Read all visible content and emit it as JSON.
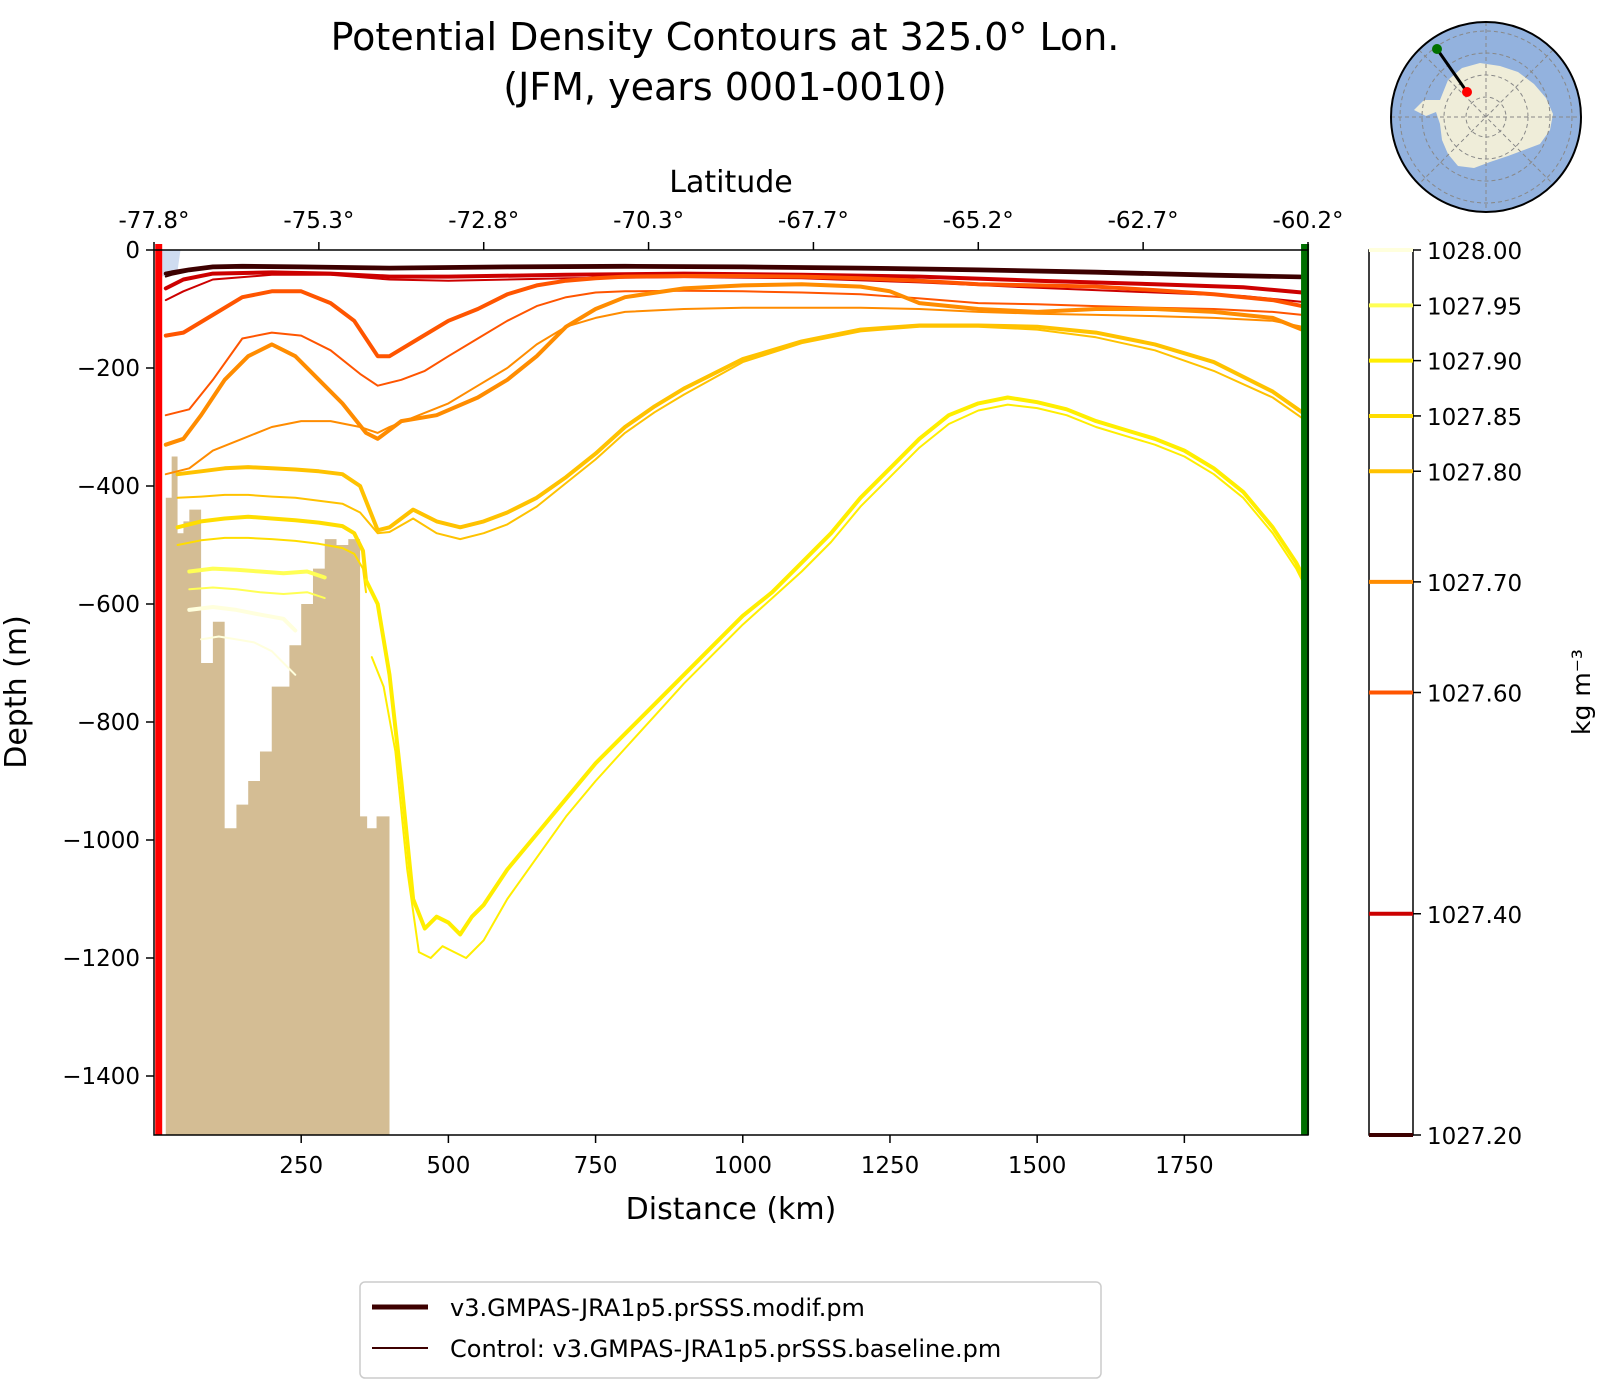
{
  "chart_data": {
    "type": "line",
    "title_line1": "Potential Density Contours at 325.0° Lon.",
    "title_line2": "(JFM, years 0001-0010)",
    "xlabel": "Distance (km)",
    "ylabel": "Depth (m)",
    "top_xlabel": "Latitude",
    "xlim": [
      0,
      1960
    ],
    "ylim": [
      -1500,
      0
    ],
    "x_ticks": [
      {
        "value": 250,
        "label": "250"
      },
      {
        "value": 500,
        "label": "500"
      },
      {
        "value": 750,
        "label": "750"
      },
      {
        "value": 1000,
        "label": "1000"
      },
      {
        "value": 1250,
        "label": "1250"
      },
      {
        "value": 1500,
        "label": "1500"
      },
      {
        "value": 1750,
        "label": "1750"
      }
    ],
    "y_ticks": [
      {
        "value": 0,
        "label": "0"
      },
      {
        "value": -200,
        "label": "−200"
      },
      {
        "value": -400,
        "label": "−400"
      },
      {
        "value": -600,
        "label": "−600"
      },
      {
        "value": -800,
        "label": "−800"
      },
      {
        "value": -1000,
        "label": "−1000"
      },
      {
        "value": -1200,
        "label": "−1200"
      },
      {
        "value": -1400,
        "label": "−1400"
      }
    ],
    "lat_ticks": [
      {
        "value": 0,
        "label": "-77.8°"
      },
      {
        "value": 280,
        "label": "-75.3°"
      },
      {
        "value": 560,
        "label": "-72.8°"
      },
      {
        "value": 840,
        "label": "-70.3°"
      },
      {
        "value": 1120,
        "label": "-67.7°"
      },
      {
        "value": 1400,
        "label": "-65.2°"
      },
      {
        "value": 1680,
        "label": "-62.7°"
      },
      {
        "value": 1960,
        "label": "-60.2°"
      }
    ],
    "colorbar": {
      "label": "kg m⁻³",
      "range": [
        1027.2,
        1028.0
      ],
      "levels": [
        {
          "value": 1028.0,
          "label": "1028.00",
          "color": "#ffffdd"
        },
        {
          "value": 1027.95,
          "label": "1027.95",
          "color": "#ffff55"
        },
        {
          "value": 1027.9,
          "label": "1027.90",
          "color": "#ffee00"
        },
        {
          "value": 1027.85,
          "label": "1027.85",
          "color": "#ffdd00"
        },
        {
          "value": 1027.8,
          "label": "1027.80",
          "color": "#ffc200"
        },
        {
          "value": 1027.7,
          "label": "1027.70",
          "color": "#ff8c00"
        },
        {
          "value": 1027.6,
          "label": "1027.60",
          "color": "#ff5500"
        },
        {
          "value": 1027.4,
          "label": "1027.40",
          "color": "#cc0000"
        },
        {
          "value": 1027.2,
          "label": "1027.20",
          "color": "#3d0000"
        }
      ]
    },
    "series": [
      {
        "name": "1027.20 modif",
        "level": 1027.2,
        "run": "modif",
        "x": [
          20,
          30,
          60,
          100,
          150,
          250,
          400,
          600,
          800,
          1000,
          1200,
          1400,
          1600,
          1800,
          1950
        ],
        "y": [
          -40,
          -38,
          -33,
          -28,
          -27,
          -28,
          -30,
          -28,
          -27,
          -28,
          -30,
          -33,
          -37,
          -42,
          -45
        ]
      },
      {
        "name": "1027.20 control",
        "level": 1027.2,
        "run": "control",
        "x": [
          20,
          30,
          60,
          100,
          150,
          250,
          400,
          600,
          800,
          1000,
          1200,
          1400,
          1600,
          1800,
          1950
        ],
        "y": [
          -45,
          -42,
          -36,
          -31,
          -30,
          -31,
          -33,
          -31,
          -30,
          -31,
          -33,
          -36,
          -40,
          -45,
          -48
        ]
      },
      {
        "name": "1027.40 modif",
        "level": 1027.4,
        "run": "modif",
        "x": [
          20,
          50,
          100,
          200,
          300,
          400,
          500,
          700,
          900,
          1100,
          1300,
          1500,
          1700,
          1850,
          1950
        ],
        "y": [
          -65,
          -50,
          -40,
          -38,
          -40,
          -45,
          -45,
          -42,
          -40,
          -42,
          -45,
          -52,
          -58,
          -63,
          -72
        ]
      },
      {
        "name": "1027.40 control",
        "level": 1027.4,
        "run": "control",
        "x": [
          20,
          50,
          100,
          200,
          300,
          400,
          500,
          700,
          900,
          1100,
          1300,
          1500,
          1700,
          1850,
          1950
        ],
        "y": [
          -85,
          -70,
          -50,
          -42,
          -42,
          -50,
          -52,
          -48,
          -46,
          -48,
          -55,
          -64,
          -72,
          -78,
          -88
        ]
      },
      {
        "name": "1027.60 modif",
        "level": 1027.6,
        "run": "modif",
        "x": [
          20,
          50,
          100,
          150,
          200,
          250,
          300,
          340,
          380,
          400,
          450,
          500,
          550,
          600,
          650,
          700,
          750,
          800,
          900,
          1000,
          1100,
          1200,
          1300,
          1400,
          1500,
          1600,
          1700,
          1800,
          1900,
          1950
        ],
        "y": [
          -145,
          -140,
          -110,
          -80,
          -70,
          -70,
          -90,
          -120,
          -180,
          -180,
          -150,
          -120,
          -100,
          -75,
          -60,
          -52,
          -48,
          -45,
          -44,
          -44,
          -45,
          -48,
          -52,
          -58,
          -60,
          -62,
          -68,
          -75,
          -85,
          -95
        ]
      },
      {
        "name": "1027.60 control",
        "level": 1027.6,
        "run": "control",
        "x": [
          20,
          60,
          100,
          150,
          200,
          250,
          300,
          350,
          380,
          420,
          460,
          500,
          550,
          600,
          650,
          700,
          750,
          800,
          900,
          1000,
          1100,
          1200,
          1300,
          1400,
          1500,
          1600,
          1700,
          1800,
          1900,
          1950
        ],
        "y": [
          -280,
          -270,
          -220,
          -150,
          -140,
          -145,
          -170,
          -210,
          -230,
          -220,
          -205,
          -180,
          -150,
          -120,
          -95,
          -80,
          -72,
          -70,
          -69,
          -70,
          -72,
          -75,
          -82,
          -90,
          -92,
          -95,
          -98,
          -100,
          -105,
          -110
        ]
      },
      {
        "name": "1027.70 modif",
        "level": 1027.7,
        "run": "modif",
        "x": [
          20,
          50,
          80,
          120,
          160,
          200,
          240,
          280,
          320,
          360,
          380,
          420,
          480,
          550,
          600,
          650,
          700,
          750,
          800,
          900,
          1000,
          1100,
          1200,
          1250,
          1300,
          1400,
          1500,
          1600,
          1700,
          1800,
          1900,
          1950
        ],
        "y": [
          -330,
          -320,
          -280,
          -220,
          -180,
          -160,
          -180,
          -220,
          -260,
          -310,
          -320,
          -290,
          -280,
          -250,
          -220,
          -180,
          -130,
          -100,
          -80,
          -65,
          -60,
          -58,
          -62,
          -70,
          -90,
          -100,
          -105,
          -100,
          -100,
          -105,
          -115,
          -135
        ]
      },
      {
        "name": "1027.70 control",
        "level": 1027.7,
        "run": "control",
        "x": [
          20,
          60,
          100,
          150,
          200,
          250,
          300,
          350,
          380,
          400,
          450,
          500,
          550,
          600,
          650,
          700,
          750,
          800,
          900,
          1000,
          1100,
          1200,
          1300,
          1400,
          1500,
          1600,
          1700,
          1800,
          1900,
          1950
        ],
        "y": [
          -380,
          -370,
          -340,
          -320,
          -300,
          -290,
          -290,
          -300,
          -310,
          -300,
          -280,
          -260,
          -230,
          -200,
          -160,
          -130,
          -115,
          -105,
          -100,
          -98,
          -98,
          -98,
          -100,
          -105,
          -108,
          -110,
          -112,
          -115,
          -120,
          -130
        ]
      },
      {
        "name": "1027.80 modif",
        "level": 1027.8,
        "run": "modif",
        "x": [
          40,
          80,
          120,
          160,
          200,
          240,
          280,
          320,
          350,
          380,
          400,
          440,
          480,
          520,
          560,
          600,
          650,
          700,
          750,
          800,
          850,
          900,
          1000,
          1100,
          1200,
          1300,
          1400,
          1500,
          1600,
          1700,
          1800,
          1900,
          1950
        ],
        "y": [
          -380,
          -375,
          -370,
          -368,
          -370,
          -372,
          -375,
          -380,
          -400,
          -475,
          -470,
          -440,
          -460,
          -470,
          -460,
          -445,
          -420,
          -385,
          -345,
          -300,
          -265,
          -235,
          -185,
          -155,
          -135,
          -128,
          -128,
          -130,
          -140,
          -160,
          -190,
          -240,
          -275
        ]
      },
      {
        "name": "1027.80 control",
        "level": 1027.8,
        "run": "control",
        "x": [
          40,
          80,
          120,
          160,
          200,
          240,
          280,
          320,
          350,
          380,
          400,
          440,
          480,
          520,
          560,
          600,
          650,
          700,
          750,
          800,
          850,
          900,
          1000,
          1100,
          1200,
          1300,
          1400,
          1500,
          1600,
          1700,
          1800,
          1900,
          1950
        ],
        "y": [
          -420,
          -418,
          -415,
          -415,
          -418,
          -420,
          -425,
          -430,
          -445,
          -480,
          -478,
          -455,
          -480,
          -490,
          -480,
          -465,
          -435,
          -395,
          -355,
          -310,
          -275,
          -245,
          -190,
          -158,
          -138,
          -130,
          -130,
          -135,
          -148,
          -170,
          -205,
          -250,
          -285
        ]
      },
      {
        "name": "1027.85 modif",
        "level": 1027.85,
        "run": "modif",
        "x": [
          40,
          80,
          120,
          160,
          200,
          240,
          280,
          320,
          340,
          355,
          360
        ],
        "y": [
          -470,
          -460,
          -455,
          -452,
          -455,
          -458,
          -462,
          -468,
          -480,
          -510,
          -560
        ]
      },
      {
        "name": "1027.85 control",
        "level": 1027.85,
        "run": "control",
        "x": [
          40,
          80,
          120,
          160,
          200,
          240,
          280,
          320,
          340,
          355,
          360
        ],
        "y": [
          -500,
          -492,
          -488,
          -488,
          -490,
          -493,
          -498,
          -505,
          -515,
          -540,
          -580
        ]
      },
      {
        "name": "1027.90 modif",
        "level": 1027.9,
        "run": "modif",
        "x": [
          360,
          380,
          400,
          420,
          440,
          460,
          480,
          500,
          520,
          540,
          560,
          600,
          650,
          700,
          750,
          800,
          850,
          900,
          950,
          1000,
          1050,
          1100,
          1150,
          1200,
          1250,
          1300,
          1350,
          1400,
          1450,
          1500,
          1550,
          1600,
          1650,
          1700,
          1750,
          1800,
          1850,
          1900,
          1940,
          1955
        ],
        "y": [
          -560,
          -600,
          -720,
          -900,
          -1100,
          -1150,
          -1130,
          -1140,
          -1160,
          -1130,
          -1110,
          -1050,
          -990,
          -930,
          -870,
          -820,
          -770,
          -720,
          -670,
          -620,
          -580,
          -530,
          -480,
          -420,
          -370,
          -320,
          -280,
          -260,
          -250,
          -258,
          -270,
          -290,
          -305,
          -320,
          -340,
          -370,
          -410,
          -470,
          -530,
          -560
        ]
      },
      {
        "name": "1027.90 control",
        "level": 1027.9,
        "run": "control",
        "x": [
          370,
          390,
          410,
          430,
          450,
          470,
          490,
          510,
          530,
          560,
          600,
          650,
          700,
          750,
          800,
          850,
          900,
          950,
          1000,
          1050,
          1100,
          1150,
          1200,
          1250,
          1300,
          1350,
          1400,
          1450,
          1500,
          1550,
          1600,
          1650,
          1700,
          1750,
          1800,
          1850,
          1900,
          1940,
          1955
        ],
        "y": [
          -690,
          -740,
          -850,
          -1050,
          -1190,
          -1200,
          -1180,
          -1190,
          -1200,
          -1170,
          -1100,
          -1030,
          -960,
          -900,
          -845,
          -790,
          -735,
          -685,
          -635,
          -590,
          -545,
          -495,
          -435,
          -385,
          -335,
          -295,
          -272,
          -262,
          -268,
          -280,
          -300,
          -315,
          -330,
          -350,
          -380,
          -420,
          -480,
          -540,
          -570
        ]
      },
      {
        "name": "1027.95 modif",
        "level": 1027.95,
        "run": "modif",
        "x": [
          60,
          100,
          140,
          180,
          220,
          260,
          290
        ],
        "y": [
          -545,
          -540,
          -542,
          -545,
          -548,
          -545,
          -555
        ]
      },
      {
        "name": "1027.95 control",
        "level": 1027.95,
        "run": "control",
        "x": [
          60,
          100,
          140,
          180,
          220,
          260,
          290
        ],
        "y": [
          -575,
          -572,
          -575,
          -580,
          -583,
          -580,
          -590
        ]
      },
      {
        "name": "1028.00 modif",
        "level": 1028.0,
        "run": "modif",
        "x": [
          60,
          100,
          140,
          180,
          220,
          240
        ],
        "y": [
          -610,
          -605,
          -610,
          -618,
          -625,
          -645
        ]
      },
      {
        "name": "1028.00 control",
        "level": 1028.0,
        "run": "control",
        "x": [
          80,
          110,
          140,
          170,
          200,
          220,
          240
        ],
        "y": [
          -660,
          -655,
          -660,
          -665,
          -680,
          -700,
          -720
        ]
      }
    ],
    "bathymetry": {
      "color": "#d4bd94",
      "x": [
        12,
        20,
        20,
        30,
        30,
        40,
        40,
        50,
        50,
        60,
        60,
        80,
        80,
        100,
        100,
        120,
        120,
        140,
        140,
        160,
        160,
        180,
        180,
        200,
        200,
        230,
        230,
        250,
        250,
        270,
        270,
        290,
        290,
        310,
        310,
        330,
        330,
        350,
        350,
        362,
        362,
        378,
        378,
        400,
        400
      ],
      "y": [
        -1500,
        -1500,
        -420,
        -420,
        -350,
        -350,
        -480,
        -480,
        -460,
        -460,
        -440,
        -440,
        -700,
        -700,
        -630,
        -630,
        -980,
        -980,
        -940,
        -940,
        -900,
        -900,
        -850,
        -850,
        -740,
        -740,
        -670,
        -670,
        -600,
        -600,
        -540,
        -540,
        -490,
        -490,
        -500,
        -500,
        -490,
        -490,
        -960,
        -960,
        -980,
        -980,
        -960,
        -960,
        -1500
      ]
    },
    "section_start_color": "#ff0000",
    "section_end_color": "#007000"
  },
  "legend": {
    "items": [
      {
        "label": "v3.GMPAS-JRA1p5.prSSS.modif.pm",
        "style": "thick"
      },
      {
        "label": "Control: v3.GMPAS-JRA1p5.prSSS.baseline.pm",
        "style": "thin"
      }
    ]
  },
  "inset_map": {
    "land_color": "#efedd9",
    "ocean_color": "#93b2de",
    "start_marker_color": "#ff0000",
    "end_marker_color": "#007000"
  }
}
